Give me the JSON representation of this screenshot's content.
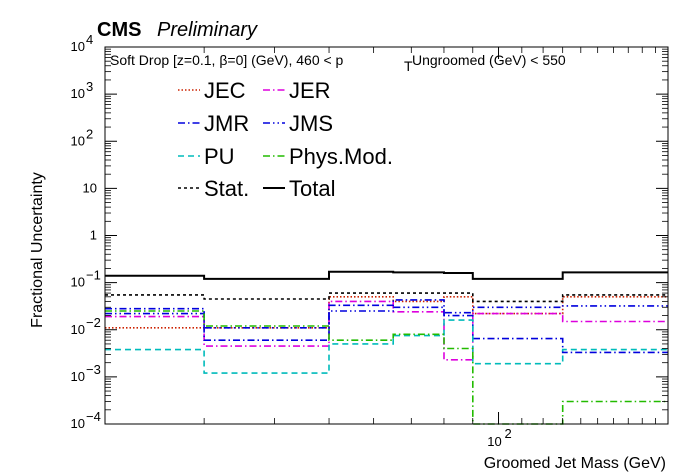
{
  "header": {
    "experiment": "CMS",
    "status": "Preliminary",
    "selection_main": "Soft Drop [z=0.1, β=0] (GeV), 460 < p",
    "selection_sub": "T",
    "selection_tail": " Ungroomed (GeV)  < 550"
  },
  "chart_data": {
    "type": "line",
    "xlabel": "Groomed Jet Mass (GeV)",
    "ylabel": "Fractional Uncertainty",
    "xscale": "log",
    "yscale": "log",
    "xlim": [
      20,
      200
    ],
    "ylim": [
      0.0001,
      10000
    ],
    "x_ticks": [
      {
        "value": 100,
        "label": "10",
        "exp": "2"
      }
    ],
    "y_ticks": [
      {
        "value": 0.0001,
        "label": "10",
        "exp": "−4"
      },
      {
        "value": 0.001,
        "label": "10",
        "exp": "−3"
      },
      {
        "value": 0.01,
        "label": "10",
        "exp": "−2"
      },
      {
        "value": 0.1,
        "label": "10",
        "exp": "−1"
      },
      {
        "value": 1,
        "label": "1",
        "exp": ""
      },
      {
        "value": 10,
        "label": "10",
        "exp": ""
      },
      {
        "value": 100,
        "label": "10",
        "exp": "2"
      },
      {
        "value": 1000,
        "label": "10",
        "exp": "3"
      },
      {
        "value": 10000,
        "label": "10",
        "exp": "4"
      }
    ],
    "bin_edges": [
      20,
      30,
      50,
      65,
      80,
      90,
      130,
      200
    ],
    "grid": false,
    "legend_position": "top-left",
    "series": [
      {
        "name": "JEC",
        "color": "#cc2200",
        "dash": "1.5 2",
        "values": [
          0.011,
          0.011,
          0.05,
          0.04,
          0.05,
          0.022,
          0.05
        ]
      },
      {
        "name": "JER",
        "color": "#dd00dd",
        "dash": "7 3 1.5 3",
        "values": [
          0.019,
          0.0045,
          0.04,
          0.024,
          0.0023,
          0.022,
          0.015
        ]
      },
      {
        "name": "JMR",
        "color": "#0000dd",
        "dash": "7 3 1.5 3",
        "values": [
          0.028,
          0.006,
          0.033,
          0.043,
          0.02,
          0.0065,
          0.0033
        ]
      },
      {
        "name": "JMS",
        "color": "#0000dd",
        "dash": "7 3 1.5 3 1.5 3",
        "values": [
          0.022,
          0.011,
          0.025,
          0.03,
          0.023,
          0.03,
          0.032
        ]
      },
      {
        "name": "PU",
        "color": "#00bbbb",
        "dash": "6 4",
        "values": [
          0.0038,
          0.0012,
          0.005,
          0.0075,
          0.016,
          0.0019,
          0.0038
        ]
      },
      {
        "name": "Phys.Mod.",
        "color": "#22bb00",
        "dash": "7 3 1.5 3",
        "values": [
          0.025,
          0.012,
          0.006,
          0.008,
          0.004,
          0.0001,
          0.0003
        ]
      },
      {
        "name": "Stat.",
        "color": "#000000",
        "dash": "3 3",
        "values": [
          0.055,
          0.045,
          0.06,
          0.06,
          0.06,
          0.04,
          0.055
        ]
      },
      {
        "name": "Total",
        "color": "#000000",
        "dash": "",
        "values": [
          0.14,
          0.12,
          0.17,
          0.165,
          0.16,
          0.12,
          0.165
        ]
      }
    ]
  }
}
